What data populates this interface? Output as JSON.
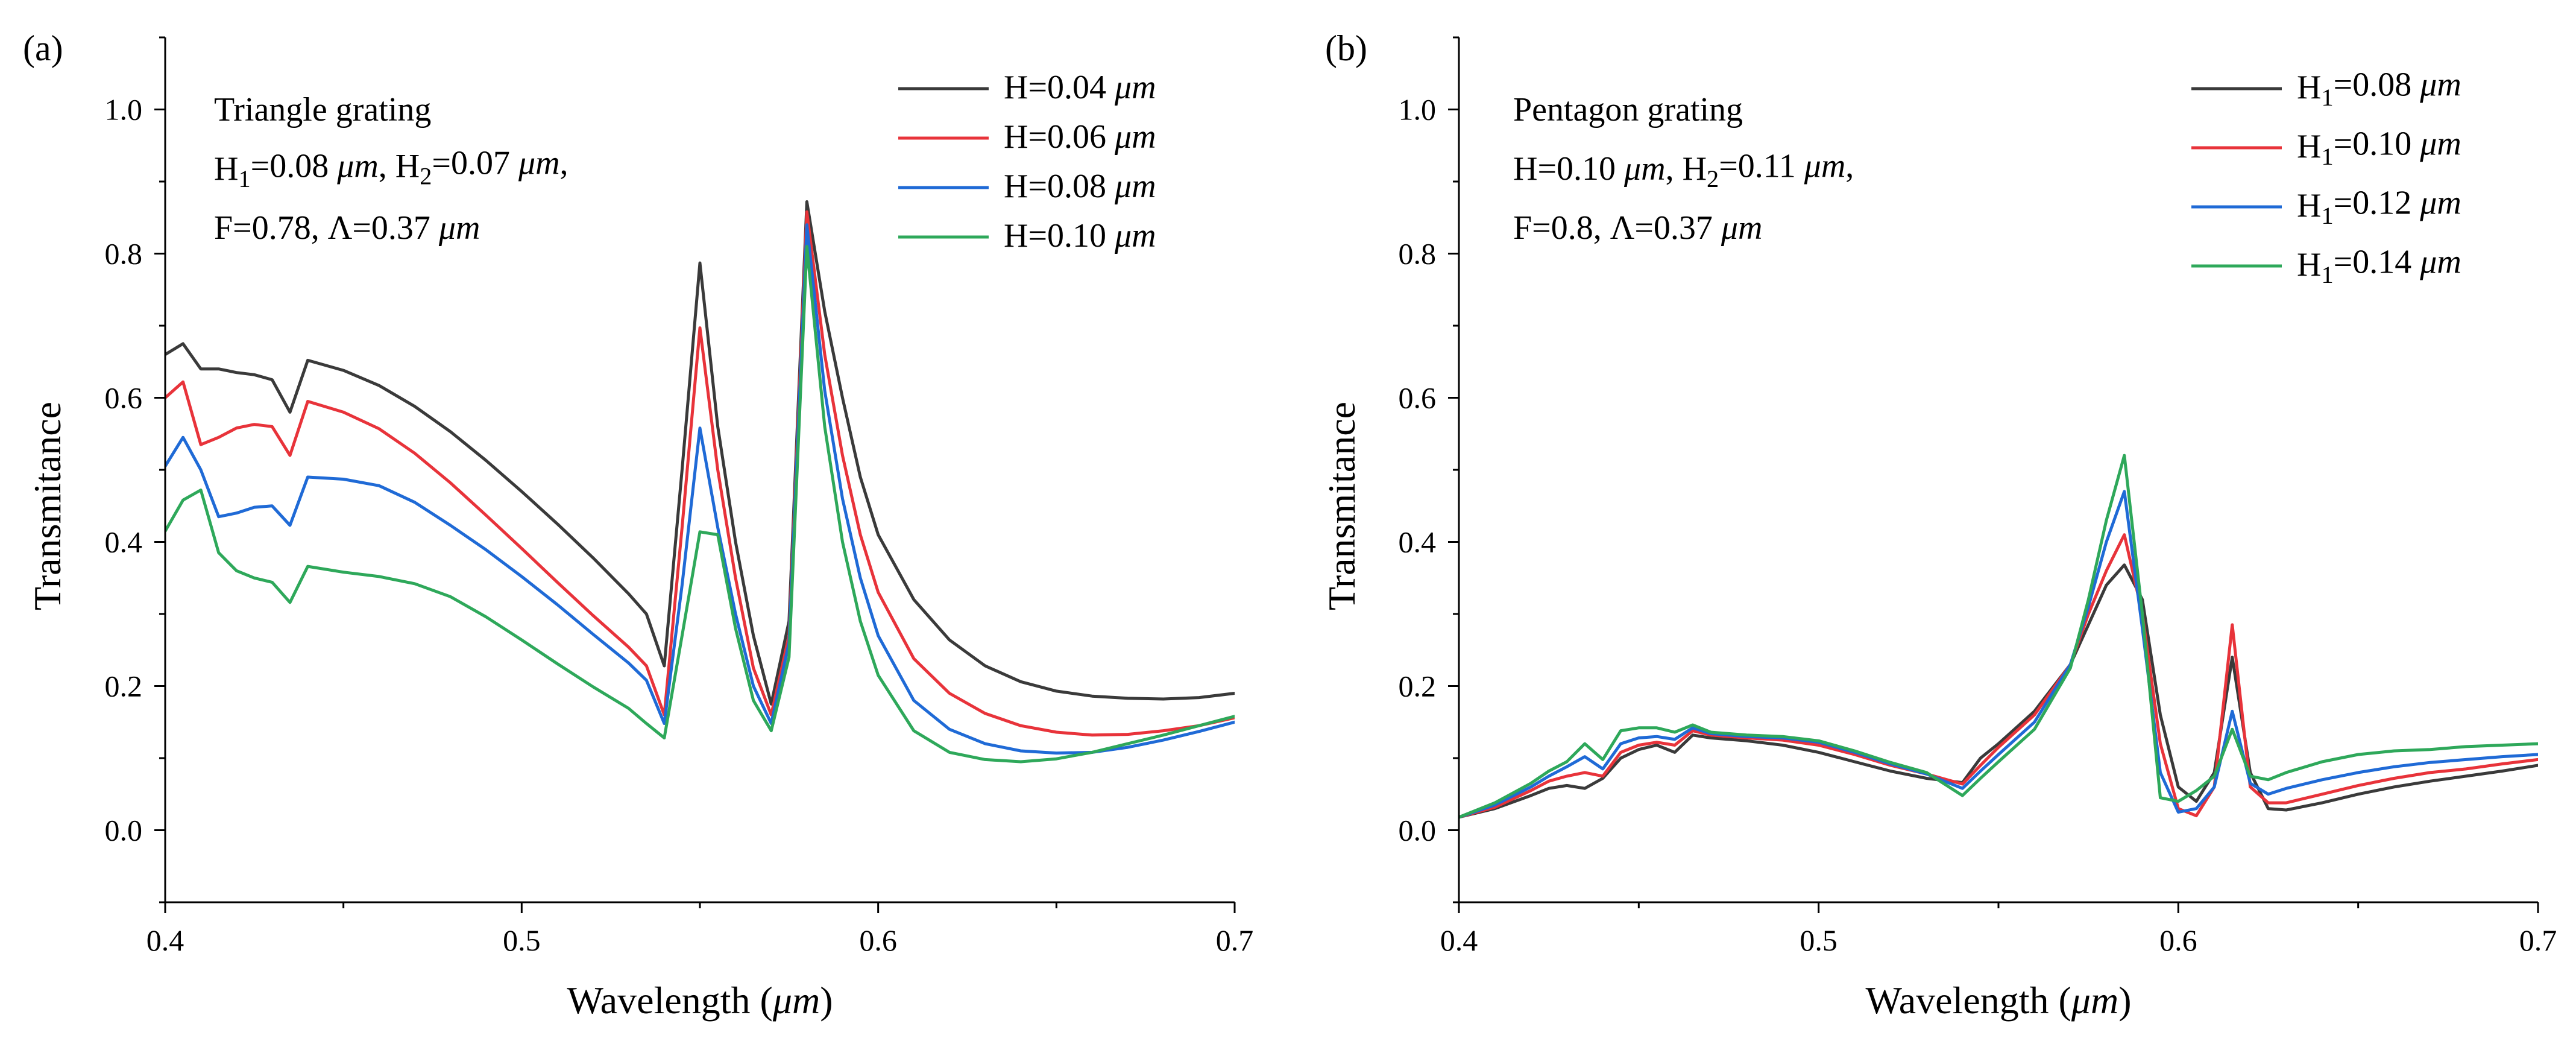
{
  "chart_data": [
    {
      "type": "line",
      "panel_label": "(a)",
      "xlabel": "Wavelength (μm)",
      "ylabel": "Transmitance",
      "xlim": [
        0.4,
        0.7
      ],
      "ylim": [
        -0.1,
        1.1
      ],
      "x_ticks": [
        "0.4",
        "0.5",
        "0.6",
        "0.7"
      ],
      "y_ticks": [
        "0.0",
        "0.2",
        "0.4",
        "0.6",
        "0.8",
        "1.0"
      ],
      "annotation": [
        "Triangle grating",
        "H₁=0.08 μm, H₂=0.07 μm,",
        "F=0.78, Λ=0.37 μm"
      ],
      "legend_position": "top-right",
      "series": [
        {
          "name": "H=0.04 μm",
          "color": "#3a3a3a",
          "x": [
            0.4,
            0.405,
            0.41,
            0.415,
            0.42,
            0.425,
            0.43,
            0.435,
            0.44,
            0.45,
            0.46,
            0.47,
            0.48,
            0.49,
            0.5,
            0.51,
            0.52,
            0.53,
            0.535,
            0.54,
            0.545,
            0.55,
            0.555,
            0.56,
            0.565,
            0.57,
            0.575,
            0.58,
            0.585,
            0.59,
            0.595,
            0.6,
            0.61,
            0.62,
            0.63,
            0.64,
            0.65,
            0.66,
            0.67,
            0.68,
            0.69,
            0.7
          ],
          "y": [
            0.66,
            0.675,
            0.64,
            0.64,
            0.635,
            0.632,
            0.625,
            0.58,
            0.652,
            0.638,
            0.617,
            0.588,
            0.553,
            0.513,
            0.47,
            0.425,
            0.378,
            0.328,
            0.3,
            0.228,
            0.5,
            0.787,
            0.56,
            0.4,
            0.27,
            0.175,
            0.29,
            0.872,
            0.72,
            0.6,
            0.49,
            0.41,
            0.32,
            0.264,
            0.228,
            0.206,
            0.193,
            0.186,
            0.183,
            0.182,
            0.184,
            0.19
          ]
        },
        {
          "name": "H=0.06 μm",
          "color": "#e8333a",
          "x": [
            0.4,
            0.405,
            0.41,
            0.415,
            0.42,
            0.425,
            0.43,
            0.435,
            0.44,
            0.45,
            0.46,
            0.47,
            0.48,
            0.49,
            0.5,
            0.51,
            0.52,
            0.53,
            0.535,
            0.54,
            0.545,
            0.55,
            0.555,
            0.56,
            0.565,
            0.57,
            0.575,
            0.58,
            0.585,
            0.59,
            0.595,
            0.6,
            0.61,
            0.62,
            0.63,
            0.64,
            0.65,
            0.66,
            0.67,
            0.68,
            0.69,
            0.7
          ],
          "y": [
            0.6,
            0.622,
            0.535,
            0.545,
            0.558,
            0.563,
            0.56,
            0.52,
            0.595,
            0.58,
            0.557,
            0.523,
            0.482,
            0.437,
            0.391,
            0.344,
            0.298,
            0.254,
            0.228,
            0.16,
            0.42,
            0.697,
            0.5,
            0.35,
            0.225,
            0.16,
            0.27,
            0.858,
            0.66,
            0.52,
            0.41,
            0.33,
            0.238,
            0.19,
            0.162,
            0.145,
            0.136,
            0.132,
            0.133,
            0.138,
            0.145,
            0.156
          ]
        },
        {
          "name": "H=0.08 μm",
          "color": "#1f6ad6",
          "x": [
            0.4,
            0.405,
            0.41,
            0.415,
            0.42,
            0.425,
            0.43,
            0.435,
            0.44,
            0.45,
            0.46,
            0.47,
            0.48,
            0.49,
            0.5,
            0.51,
            0.52,
            0.53,
            0.535,
            0.54,
            0.545,
            0.55,
            0.555,
            0.56,
            0.565,
            0.57,
            0.575,
            0.58,
            0.585,
            0.59,
            0.595,
            0.6,
            0.61,
            0.62,
            0.63,
            0.64,
            0.65,
            0.66,
            0.67,
            0.68,
            0.69,
            0.7
          ],
          "y": [
            0.505,
            0.545,
            0.5,
            0.435,
            0.44,
            0.448,
            0.45,
            0.423,
            0.49,
            0.487,
            0.478,
            0.455,
            0.423,
            0.389,
            0.352,
            0.313,
            0.272,
            0.232,
            0.208,
            0.148,
            0.34,
            0.558,
            0.42,
            0.3,
            0.2,
            0.148,
            0.26,
            0.84,
            0.61,
            0.46,
            0.35,
            0.27,
            0.18,
            0.14,
            0.12,
            0.11,
            0.107,
            0.108,
            0.115,
            0.125,
            0.137,
            0.15
          ]
        },
        {
          "name": "H=0.10 μm",
          "color": "#2ea85a",
          "x": [
            0.4,
            0.405,
            0.41,
            0.415,
            0.42,
            0.425,
            0.43,
            0.435,
            0.44,
            0.45,
            0.46,
            0.47,
            0.48,
            0.49,
            0.5,
            0.51,
            0.52,
            0.53,
            0.535,
            0.54,
            0.545,
            0.55,
            0.555,
            0.56,
            0.565,
            0.57,
            0.575,
            0.58,
            0.585,
            0.59,
            0.595,
            0.6,
            0.61,
            0.62,
            0.63,
            0.64,
            0.65,
            0.66,
            0.67,
            0.68,
            0.69,
            0.7
          ],
          "y": [
            0.415,
            0.458,
            0.472,
            0.385,
            0.36,
            0.35,
            0.344,
            0.316,
            0.366,
            0.358,
            0.352,
            0.342,
            0.324,
            0.296,
            0.264,
            0.231,
            0.199,
            0.169,
            0.148,
            0.128,
            0.27,
            0.414,
            0.41,
            0.28,
            0.18,
            0.138,
            0.24,
            0.81,
            0.56,
            0.4,
            0.29,
            0.215,
            0.138,
            0.108,
            0.098,
            0.095,
            0.099,
            0.108,
            0.12,
            0.132,
            0.145,
            0.158
          ]
        }
      ]
    },
    {
      "type": "line",
      "panel_label": "(b)",
      "xlabel": "Wavelength (μm)",
      "ylabel": "Transmitance",
      "xlim": [
        0.4,
        0.7
      ],
      "ylim": [
        -0.1,
        1.1
      ],
      "x_ticks": [
        "0.4",
        "0.5",
        "0.6",
        "0.7"
      ],
      "y_ticks": [
        "0.0",
        "0.2",
        "0.4",
        "0.6",
        "0.8",
        "1.0"
      ],
      "annotation": [
        "Pentagon grating",
        "H=0.10 μm, H₂=0.11 μm,",
        "F=0.8, Λ=0.37 μm"
      ],
      "legend_position": "top-right",
      "series": [
        {
          "name": "H₁=0.08 μm",
          "color": "#3a3a3a",
          "x": [
            0.4,
            0.41,
            0.42,
            0.425,
            0.43,
            0.435,
            0.44,
            0.445,
            0.45,
            0.455,
            0.46,
            0.465,
            0.47,
            0.48,
            0.49,
            0.5,
            0.51,
            0.52,
            0.53,
            0.54,
            0.545,
            0.55,
            0.56,
            0.57,
            0.575,
            0.58,
            0.585,
            0.59,
            0.595,
            0.6,
            0.605,
            0.61,
            0.615,
            0.62,
            0.625,
            0.63,
            0.64,
            0.65,
            0.66,
            0.67,
            0.68,
            0.69,
            0.7
          ],
          "y": [
            0.018,
            0.03,
            0.048,
            0.058,
            0.062,
            0.058,
            0.072,
            0.1,
            0.112,
            0.118,
            0.108,
            0.132,
            0.128,
            0.124,
            0.118,
            0.108,
            0.095,
            0.082,
            0.072,
            0.066,
            0.1,
            0.12,
            0.165,
            0.23,
            0.285,
            0.34,
            0.368,
            0.32,
            0.16,
            0.06,
            0.04,
            0.08,
            0.24,
            0.08,
            0.03,
            0.028,
            0.038,
            0.05,
            0.06,
            0.068,
            0.075,
            0.082,
            0.09
          ]
        },
        {
          "name": "H₁=0.10 μm",
          "color": "#e8333a",
          "x": [
            0.4,
            0.41,
            0.42,
            0.425,
            0.43,
            0.435,
            0.44,
            0.445,
            0.45,
            0.455,
            0.46,
            0.465,
            0.47,
            0.48,
            0.49,
            0.5,
            0.51,
            0.52,
            0.53,
            0.54,
            0.545,
            0.55,
            0.56,
            0.57,
            0.575,
            0.58,
            0.585,
            0.59,
            0.595,
            0.6,
            0.605,
            0.61,
            0.615,
            0.62,
            0.625,
            0.63,
            0.64,
            0.65,
            0.66,
            0.67,
            0.68,
            0.69,
            0.7
          ],
          "y": [
            0.018,
            0.032,
            0.055,
            0.068,
            0.075,
            0.08,
            0.075,
            0.108,
            0.118,
            0.122,
            0.118,
            0.138,
            0.132,
            0.128,
            0.125,
            0.118,
            0.105,
            0.09,
            0.078,
            0.064,
            0.09,
            0.115,
            0.16,
            0.23,
            0.3,
            0.36,
            0.41,
            0.3,
            0.12,
            0.03,
            0.02,
            0.06,
            0.285,
            0.06,
            0.038,
            0.038,
            0.05,
            0.062,
            0.072,
            0.08,
            0.085,
            0.092,
            0.098
          ]
        },
        {
          "name": "H₁=0.12 μm",
          "color": "#1f6ad6",
          "x": [
            0.4,
            0.41,
            0.42,
            0.425,
            0.43,
            0.435,
            0.44,
            0.445,
            0.45,
            0.455,
            0.46,
            0.465,
            0.47,
            0.48,
            0.49,
            0.5,
            0.51,
            0.52,
            0.53,
            0.54,
            0.545,
            0.55,
            0.56,
            0.57,
            0.575,
            0.58,
            0.585,
            0.59,
            0.595,
            0.6,
            0.605,
            0.61,
            0.615,
            0.62,
            0.625,
            0.63,
            0.64,
            0.65,
            0.66,
            0.67,
            0.68,
            0.69,
            0.7
          ],
          "y": [
            0.018,
            0.035,
            0.06,
            0.075,
            0.088,
            0.102,
            0.085,
            0.12,
            0.128,
            0.13,
            0.126,
            0.142,
            0.134,
            0.13,
            0.128,
            0.122,
            0.108,
            0.092,
            0.078,
            0.058,
            0.082,
            0.105,
            0.15,
            0.23,
            0.31,
            0.4,
            0.47,
            0.28,
            0.08,
            0.025,
            0.03,
            0.06,
            0.165,
            0.065,
            0.05,
            0.058,
            0.07,
            0.08,
            0.088,
            0.094,
            0.098,
            0.102,
            0.105
          ]
        },
        {
          "name": "H₁=0.14 μm",
          "color": "#2ea85a",
          "x": [
            0.4,
            0.41,
            0.42,
            0.425,
            0.43,
            0.435,
            0.44,
            0.445,
            0.45,
            0.455,
            0.46,
            0.465,
            0.47,
            0.48,
            0.49,
            0.5,
            0.51,
            0.52,
            0.53,
            0.54,
            0.545,
            0.55,
            0.56,
            0.57,
            0.575,
            0.58,
            0.585,
            0.59,
            0.595,
            0.6,
            0.605,
            0.61,
            0.615,
            0.62,
            0.625,
            0.63,
            0.64,
            0.65,
            0.66,
            0.67,
            0.68,
            0.69,
            0.7
          ],
          "y": [
            0.018,
            0.038,
            0.065,
            0.082,
            0.095,
            0.12,
            0.098,
            0.138,
            0.142,
            0.142,
            0.136,
            0.146,
            0.136,
            0.132,
            0.13,
            0.124,
            0.11,
            0.094,
            0.08,
            0.048,
            0.072,
            0.095,
            0.14,
            0.225,
            0.32,
            0.43,
            0.52,
            0.3,
            0.045,
            0.04,
            0.055,
            0.075,
            0.14,
            0.075,
            0.07,
            0.08,
            0.095,
            0.105,
            0.11,
            0.112,
            0.116,
            0.118,
            0.12
          ]
        }
      ]
    }
  ]
}
